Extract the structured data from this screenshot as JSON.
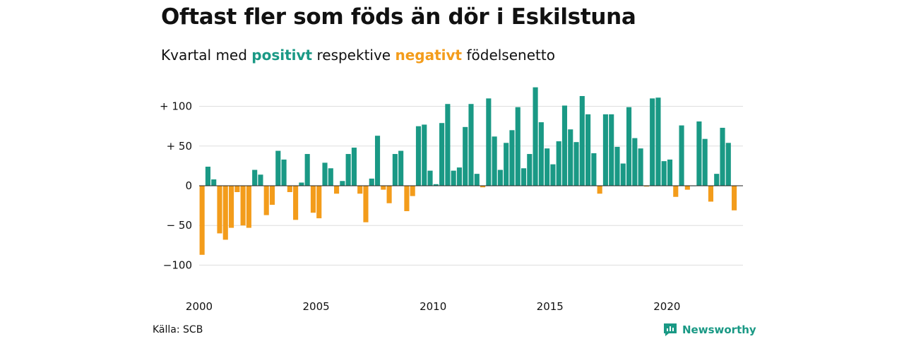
{
  "title": "Oftast fler som föds än dör i Eskilstuna",
  "subtitle": {
    "prefix": "Kvartal med ",
    "positive": "positivt",
    "middle": " respektive ",
    "negative": "negativt",
    "suffix": " födelsenetto"
  },
  "source": "Källa: SCB",
  "brand": {
    "name": "Newsworthy",
    "icon": "newsworthy-logo-icon"
  },
  "colors": {
    "positive": "#1a9985",
    "negative": "#f39c1b",
    "grid": "#dddddd"
  },
  "chart_data": {
    "type": "bar",
    "title": "Oftast fler som föds än dör i Eskilstuna",
    "subtitle": "Kvartal med positivt respektive negativt födelsenetto",
    "xlabel": "",
    "ylabel": "",
    "ylim": [
      -110,
      125
    ],
    "xlim": [
      2000,
      2023.25
    ],
    "grid": true,
    "x_ticks": [
      2000,
      2005,
      2010,
      2015,
      2020
    ],
    "x_tick_labels": [
      "2000",
      "2005",
      "2010",
      "2015",
      "2020"
    ],
    "y_ticks": [
      100,
      50,
      0,
      -50,
      -100
    ],
    "y_tick_labels": [
      "+ 100",
      "+  50",
      "0",
      "− 50",
      "−100"
    ],
    "start_year": 2000,
    "quarters_per_year": 4,
    "values": [
      -87,
      24,
      8,
      -60,
      -68,
      -53,
      -8,
      -50,
      -53,
      20,
      14,
      -37,
      -24,
      44,
      33,
      -8,
      -43,
      4,
      40,
      -34,
      -41,
      29,
      22,
      -10,
      6,
      40,
      48,
      -10,
      -46,
      9,
      63,
      -5,
      -22,
      40,
      44,
      -32,
      -13,
      75,
      77,
      19,
      2,
      79,
      103,
      19,
      23,
      74,
      103,
      15,
      -2,
      110,
      62,
      20,
      54,
      70,
      99,
      22,
      40,
      124,
      80,
      47,
      27,
      56,
      101,
      71,
      55,
      113,
      90,
      41,
      -10,
      90,
      90,
      49,
      28,
      99,
      60,
      47,
      -1,
      110,
      111,
      31,
      33,
      -14,
      76,
      -5,
      0,
      81,
      59,
      -20,
      15,
      73,
      54,
      -31
    ]
  }
}
